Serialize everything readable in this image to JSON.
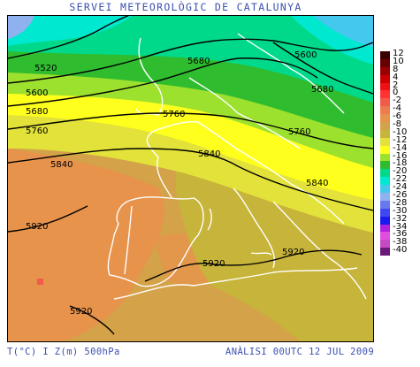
{
  "header": {
    "title": "SERVEI METEOROLÒGIC DE CATALUNYA"
  },
  "footer": {
    "variables": "T(°C) I Z(m) 500hPa",
    "analysis": "ANÀLISI 00UTC 12 JUL 2009"
  },
  "legend": {
    "items": [
      {
        "label": "12",
        "color": "#3a0000"
      },
      {
        "label": "10",
        "color": "#680000"
      },
      {
        "label": "8",
        "color": "#9a0000"
      },
      {
        "label": "4",
        "color": "#cc0000"
      },
      {
        "label": "2",
        "color": "#ee1111"
      },
      {
        "label": "0",
        "color": "#ff3333"
      },
      {
        "label": "-2",
        "color": "#f25a4a"
      },
      {
        "label": "-4",
        "color": "#ee7a4e"
      },
      {
        "label": "-6",
        "color": "#e7934c"
      },
      {
        "label": "-8",
        "color": "#d4a248"
      },
      {
        "label": "-10",
        "color": "#c7b43a"
      },
      {
        "label": "-12",
        "color": "#e2e23a"
      },
      {
        "label": "-14",
        "color": "#ffff1e"
      },
      {
        "label": "-16",
        "color": "#9ce12e"
      },
      {
        "label": "-18",
        "color": "#2fbd2f"
      },
      {
        "label": "-20",
        "color": "#00d98a"
      },
      {
        "label": "-22",
        "color": "#00e8d0"
      },
      {
        "label": "-24",
        "color": "#45c8ee"
      },
      {
        "label": "-26",
        "color": "#8fb2ee"
      },
      {
        "label": "-28",
        "color": "#6a78ee"
      },
      {
        "label": "-30",
        "color": "#3e48f0"
      },
      {
        "label": "-32",
        "color": "#1a1af0"
      },
      {
        "label": "-34",
        "color": "#b020e0"
      },
      {
        "label": "-36",
        "color": "#e04ee0"
      },
      {
        "label": "-38",
        "color": "#c64ac6"
      },
      {
        "label": "-40",
        "color": "#6a1a78"
      }
    ]
  },
  "map": {
    "contour_labels": [
      "5520",
      "5600",
      "5680",
      "5760",
      "5840",
      "5920",
      "5680",
      "5600",
      "5680",
      "5760",
      "5840",
      "5760",
      "5840",
      "5920",
      "5920",
      "5920"
    ]
  }
}
